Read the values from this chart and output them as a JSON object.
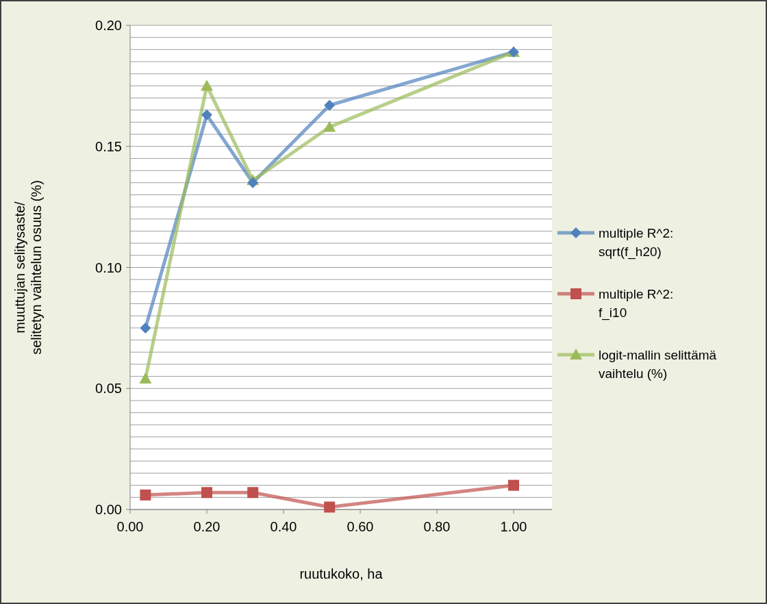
{
  "chart_data": {
    "type": "line",
    "xlabel": "ruutukoko, ha",
    "ylabel": "muuttujan selitysaste/ selitetyn vaihtelun osuus (%)",
    "x": [
      0.04,
      0.2,
      0.32,
      0.52,
      1.0
    ],
    "series": [
      {
        "name": "multiple R^2: sqrt(f_h20)",
        "color": "#4f81bd",
        "marker": "diamond",
        "values": [
          0.075,
          0.163,
          0.135,
          0.167,
          0.189
        ]
      },
      {
        "name": "multiple R^2: f_i10",
        "color": "#c0504d",
        "marker": "square",
        "values": [
          0.006,
          0.007,
          0.007,
          0.001,
          0.01
        ]
      },
      {
        "name": "logit-mallin selittämä vaihtelu (%)",
        "color": "#9bbb59",
        "marker": "triangle",
        "values": [
          0.054,
          0.175,
          0.136,
          0.158,
          0.189
        ]
      }
    ],
    "xlim": [
      0,
      1.1
    ],
    "xticks": [
      {
        "value": 0,
        "label": "0.00"
      },
      {
        "value": 0.2,
        "label": "0.20"
      },
      {
        "value": 0.4,
        "label": "0.40"
      },
      {
        "value": 0.6,
        "label": "0.60"
      },
      {
        "value": 0.8,
        "label": "0.80"
      },
      {
        "value": 1.0,
        "label": "1.00"
      }
    ],
    "ylim": [
      0,
      0.2
    ],
    "yticks": [
      {
        "value": 0,
        "label": "0.00"
      },
      {
        "value": 0.005,
        "label": null
      },
      {
        "value": 0.01,
        "label": null
      },
      {
        "value": 0.015,
        "label": null
      },
      {
        "value": 0.02,
        "label": null
      },
      {
        "value": 0.025,
        "label": null
      },
      {
        "value": 0.03,
        "label": null
      },
      {
        "value": 0.035,
        "label": null
      },
      {
        "value": 0.04,
        "label": null
      },
      {
        "value": 0.045,
        "label": null
      },
      {
        "value": 0.05,
        "label": "0.05"
      },
      {
        "value": 0.055,
        "label": null
      },
      {
        "value": 0.06,
        "label": null
      },
      {
        "value": 0.065,
        "label": null
      },
      {
        "value": 0.07,
        "label": null
      },
      {
        "value": 0.075,
        "label": null
      },
      {
        "value": 0.08,
        "label": null
      },
      {
        "value": 0.085,
        "label": null
      },
      {
        "value": 0.09,
        "label": null
      },
      {
        "value": 0.095,
        "label": null
      },
      {
        "value": 0.1,
        "label": "0.10"
      },
      {
        "value": 0.105,
        "label": null
      },
      {
        "value": 0.11,
        "label": null
      },
      {
        "value": 0.115,
        "label": null
      },
      {
        "value": 0.12,
        "label": null
      },
      {
        "value": 0.125,
        "label": null
      },
      {
        "value": 0.13,
        "label": null
      },
      {
        "value": 0.135,
        "label": null
      },
      {
        "value": 0.14,
        "label": null
      },
      {
        "value": 0.145,
        "label": null
      },
      {
        "value": 0.15,
        "label": "0.15"
      },
      {
        "value": 0.155,
        "label": null
      },
      {
        "value": 0.16,
        "label": null
      },
      {
        "value": 0.165,
        "label": null
      },
      {
        "value": 0.17,
        "label": null
      },
      {
        "value": 0.175,
        "label": null
      },
      {
        "value": 0.18,
        "label": null
      },
      {
        "value": 0.185,
        "label": null
      },
      {
        "value": 0.19,
        "label": null
      },
      {
        "value": 0.195,
        "label": null
      },
      {
        "value": 0.2,
        "label": "0.20"
      }
    ],
    "grid": "y",
    "legend": "right",
    "line_style": "solid"
  }
}
